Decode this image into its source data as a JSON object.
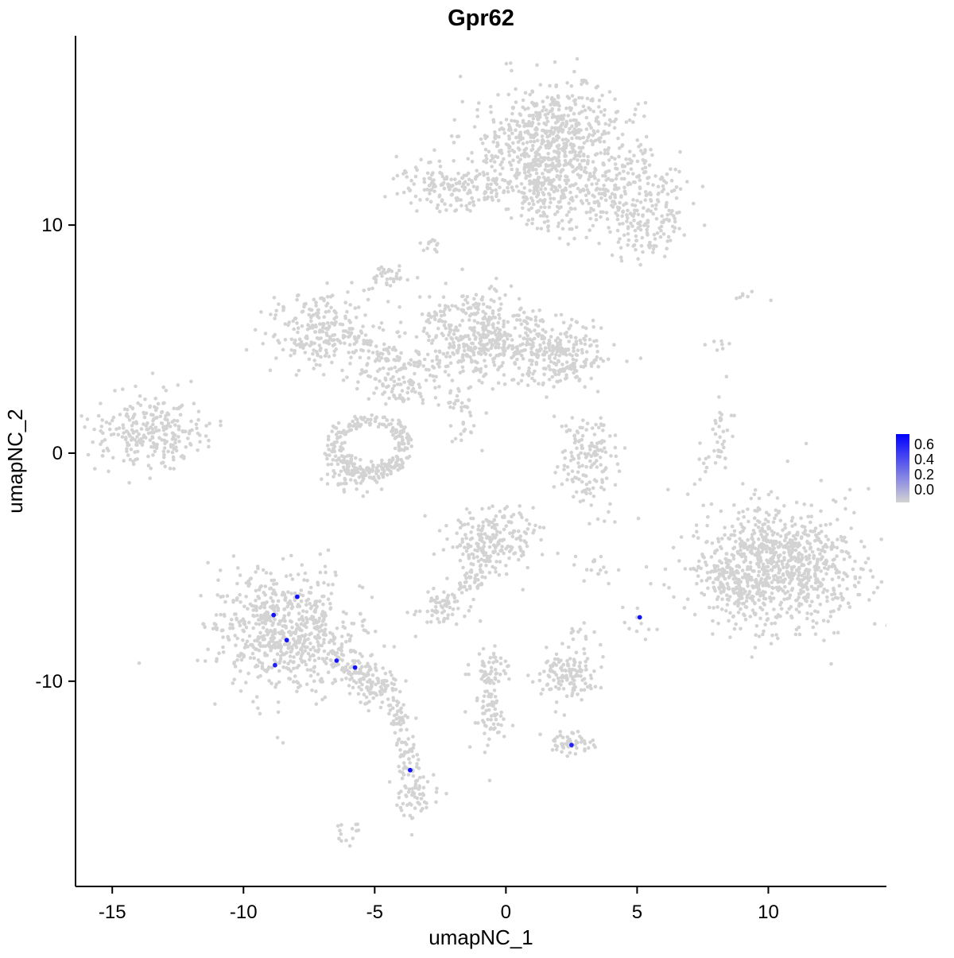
{
  "chart_data": {
    "type": "scatter",
    "title": "Gpr62",
    "xlabel": "umapNC_1",
    "ylabel": "umapNC_2",
    "xlim": [
      -16.4,
      14.5
    ],
    "ylim": [
      -19.0,
      18.3
    ],
    "x_ticks": [
      -15,
      -10,
      -5,
      0,
      5,
      10
    ],
    "y_ticks": [
      -10,
      0,
      10
    ],
    "grid": false,
    "point_color_background": "#D3D3D3",
    "point_color_high": "#0000FF",
    "legend": {
      "position": "right",
      "ticks": [
        "0.6",
        "0.4",
        "0.2",
        "0.0"
      ],
      "tick_values": [
        0.6,
        0.4,
        0.2,
        0.0
      ],
      "low_color": "#D3D3D3",
      "high_color": "#0000FF",
      "max_value": 0.66
    },
    "background_clusters": [
      {
        "shape": "gauss",
        "cx": 1.8,
        "cy": 13.8,
        "rx": 1.35,
        "ry": 1.15,
        "n": 620
      },
      {
        "shape": "gauss",
        "cx": 1.6,
        "cy": 11.3,
        "rx": 0.7,
        "ry": 0.8,
        "n": 140
      },
      {
        "shape": "gauss",
        "cx": 4.4,
        "cy": 11.6,
        "rx": 1.2,
        "ry": 1.0,
        "n": 220
      },
      {
        "shape": "gauss",
        "cx": 5.2,
        "cy": 9.9,
        "rx": 0.8,
        "ry": 0.7,
        "n": 110
      },
      {
        "shape": "gauss",
        "cx": -2.3,
        "cy": 11.7,
        "rx": 0.95,
        "ry": 0.6,
        "n": 150
      },
      {
        "shape": "line",
        "x1": -1.2,
        "y1": 11.6,
        "x2": 1.0,
        "y2": 12.2,
        "jitter": 0.5,
        "n": 60
      },
      {
        "shape": "gauss",
        "cx": -2.8,
        "cy": 9.1,
        "rx": 0.25,
        "ry": 0.2,
        "n": 12
      },
      {
        "shape": "gauss",
        "cx": -4.5,
        "cy": 7.6,
        "rx": 0.4,
        "ry": 0.3,
        "n": 35
      },
      {
        "shape": "gauss",
        "cx": -7.1,
        "cy": 5.4,
        "rx": 1.0,
        "ry": 0.85,
        "n": 230
      },
      {
        "shape": "line",
        "x1": -5.9,
        "y1": 4.9,
        "x2": -3.0,
        "y2": 3.6,
        "jitter": 0.4,
        "n": 110
      },
      {
        "shape": "line",
        "x1": -5.6,
        "y1": 3.7,
        "x2": -3.4,
        "y2": 2.4,
        "jitter": 0.35,
        "n": 70
      },
      {
        "shape": "gauss",
        "cx": -1.0,
        "cy": 5.1,
        "rx": 1.15,
        "ry": 0.95,
        "n": 430
      },
      {
        "shape": "gauss",
        "cx": 1.9,
        "cy": 4.3,
        "rx": 1.0,
        "ry": 0.7,
        "n": 260
      },
      {
        "shape": "line",
        "x1": -2.2,
        "y1": 3.0,
        "x2": -1.4,
        "y2": 0.8,
        "jitter": 0.4,
        "n": 35
      },
      {
        "shape": "ring",
        "cx": -5.2,
        "cy": 0.3,
        "r": 1.35,
        "w": 0.55,
        "n": 240
      },
      {
        "shape": "gauss",
        "cx": -5.8,
        "cy": -0.7,
        "rx": 0.6,
        "ry": 0.45,
        "n": 80
      },
      {
        "shape": "gauss",
        "cx": -13.5,
        "cy": 1.0,
        "rx": 1.05,
        "ry": 0.85,
        "n": 260
      },
      {
        "shape": "gauss",
        "cx": 3.2,
        "cy": -0.3,
        "rx": 0.55,
        "ry": 0.95,
        "n": 150
      },
      {
        "shape": "gauss",
        "cx": 8.2,
        "cy": 0.7,
        "rx": 0.18,
        "ry": 0.8,
        "n": 35
      },
      {
        "shape": "gauss",
        "cx": 8.1,
        "cy": 4.9,
        "rx": 0.25,
        "ry": 0.2,
        "n": 7
      },
      {
        "shape": "gauss",
        "cx": 9.2,
        "cy": 6.9,
        "rx": 0.25,
        "ry": 0.2,
        "n": 7
      },
      {
        "shape": "gauss",
        "cx": 7.6,
        "cy": -0.7,
        "rx": 0.2,
        "ry": 0.5,
        "n": 8
      },
      {
        "shape": "gauss",
        "cx": -0.5,
        "cy": -3.8,
        "rx": 0.85,
        "ry": 0.7,
        "n": 210
      },
      {
        "shape": "line",
        "x1": -1.0,
        "y1": -4.8,
        "x2": -1.3,
        "y2": -6.1,
        "jitter": 0.25,
        "n": 40
      },
      {
        "shape": "gauss",
        "cx": -8.4,
        "cy": -7.8,
        "rx": 1.35,
        "ry": 1.3,
        "n": 640
      },
      {
        "shape": "line",
        "x1": -6.6,
        "y1": -8.8,
        "x2": -4.4,
        "y2": -10.7,
        "jitter": 0.45,
        "n": 170
      },
      {
        "shape": "line",
        "x1": -4.2,
        "y1": -11.0,
        "x2": -3.7,
        "y2": -13.6,
        "jitter": 0.25,
        "n": 70
      },
      {
        "shape": "gauss",
        "cx": -3.5,
        "cy": -14.9,
        "rx": 0.4,
        "ry": 0.55,
        "n": 70
      },
      {
        "shape": "gauss",
        "cx": -2.4,
        "cy": -6.7,
        "rx": 0.5,
        "ry": 0.45,
        "n": 70
      },
      {
        "shape": "gauss",
        "cx": -0.6,
        "cy": -11.0,
        "rx": 0.28,
        "ry": 1.15,
        "n": 90
      },
      {
        "shape": "gauss",
        "cx": -0.7,
        "cy": -9.5,
        "rx": 0.4,
        "ry": 0.3,
        "n": 30
      },
      {
        "shape": "gauss",
        "cx": 2.3,
        "cy": -9.8,
        "rx": 0.6,
        "ry": 0.55,
        "n": 130
      },
      {
        "shape": "gauss",
        "cx": 2.9,
        "cy": -7.8,
        "rx": 0.3,
        "ry": 0.3,
        "n": 10
      },
      {
        "shape": "gauss",
        "cx": 3.5,
        "cy": -5.2,
        "rx": 0.35,
        "ry": 0.3,
        "n": 16
      },
      {
        "shape": "gauss",
        "cx": 2.4,
        "cy": -12.7,
        "rx": 0.4,
        "ry": 0.3,
        "n": 50
      },
      {
        "shape": "gauss",
        "cx": 10.4,
        "cy": -4.9,
        "rx": 1.6,
        "ry": 1.35,
        "n": 880
      },
      {
        "shape": "gauss",
        "cx": 8.6,
        "cy": -5.6,
        "rx": 0.6,
        "ry": 0.8,
        "n": 90
      },
      {
        "shape": "gauss",
        "cx": 5.0,
        "cy": -7.5,
        "rx": 0.3,
        "ry": 0.4,
        "n": 10
      },
      {
        "shape": "gauss",
        "cx": -6.1,
        "cy": -16.7,
        "rx": 0.35,
        "ry": 0.25,
        "n": 14
      }
    ],
    "expressing_cells": [
      {
        "x": -8.85,
        "y": -7.1,
        "value": 0.6
      },
      {
        "x": -7.95,
        "y": -6.3,
        "value": 0.6
      },
      {
        "x": -8.35,
        "y": -8.2,
        "value": 0.6
      },
      {
        "x": -8.8,
        "y": -9.3,
        "value": 0.55
      },
      {
        "x": -6.45,
        "y": -9.1,
        "value": 0.6
      },
      {
        "x": -5.75,
        "y": -9.4,
        "value": 0.6
      },
      {
        "x": -3.65,
        "y": -13.9,
        "value": 0.6
      },
      {
        "x": 5.1,
        "y": -7.2,
        "value": 0.6
      },
      {
        "x": 2.5,
        "y": -12.8,
        "value": 0.55
      }
    ]
  }
}
